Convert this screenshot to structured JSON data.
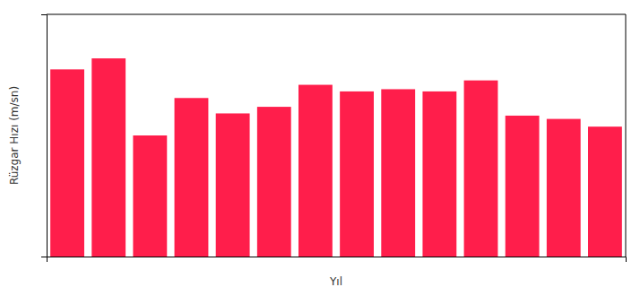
{
  "chart_data": {
    "type": "bar",
    "categories": [
      null,
      null,
      null,
      null,
      null,
      null,
      null,
      null,
      null,
      null,
      null,
      null,
      null,
      null
    ],
    "values": [
      8.5,
      9.0,
      5.5,
      7.2,
      6.5,
      6.8,
      7.8,
      7.5,
      7.6,
      7.5,
      8.0,
      6.4,
      6.25,
      5.9
    ],
    "color": "#ff1e4b",
    "xlabel": "Yıl",
    "ylabel": "Rüzgar Hızı (m/sn)",
    "ylim": [
      0,
      11
    ],
    "yticks": [],
    "grid": false,
    "tick_labels": false
  }
}
